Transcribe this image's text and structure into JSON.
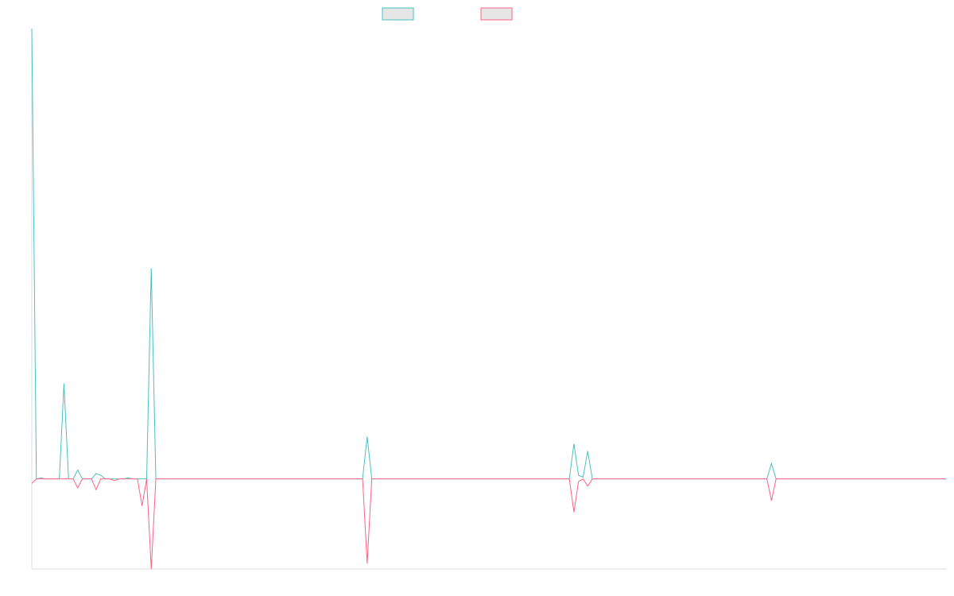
{
  "chart_data": {
    "type": "line",
    "title": "",
    "xlabel": "",
    "ylabel": "",
    "grid": false,
    "legend_position": "top-center",
    "x_count": 200,
    "ylim": [
      -100,
      500
    ],
    "series": [
      {
        "color": "#4bc0c0",
        "legend_fill": "#e6e6e6",
        "points": [
          [
            0,
            500
          ],
          [
            1,
            0
          ],
          [
            2,
            1
          ],
          [
            3,
            0
          ],
          [
            6,
            0
          ],
          [
            7,
            106
          ],
          [
            8,
            0
          ],
          [
            9,
            0
          ],
          [
            10,
            10
          ],
          [
            11,
            0
          ],
          [
            13,
            0
          ],
          [
            14,
            6
          ],
          [
            15,
            4
          ],
          [
            16,
            0
          ],
          [
            20,
            0
          ],
          [
            21,
            1
          ],
          [
            22,
            0
          ],
          [
            25,
            0
          ],
          [
            26,
            234
          ],
          [
            27,
            0
          ],
          [
            72,
            0
          ],
          [
            73,
            47
          ],
          [
            74,
            0
          ],
          [
            117,
            0
          ],
          [
            118,
            39
          ],
          [
            119,
            4
          ],
          [
            120,
            2
          ],
          [
            121,
            31
          ],
          [
            122,
            0
          ],
          [
            160,
            0
          ],
          [
            161,
            17
          ],
          [
            162,
            0
          ],
          [
            199,
            0
          ]
        ]
      },
      {
        "color": "#ff6384",
        "legend_fill": "#e6e6e6",
        "points": [
          [
            0,
            -5
          ],
          [
            1,
            0
          ],
          [
            9,
            0
          ],
          [
            10,
            -10
          ],
          [
            11,
            0
          ],
          [
            13,
            0
          ],
          [
            14,
            -12
          ],
          [
            15,
            0
          ],
          [
            17,
            0
          ],
          [
            18,
            -2
          ],
          [
            19,
            0
          ],
          [
            23,
            0
          ],
          [
            24,
            -30
          ],
          [
            25,
            0
          ],
          [
            26,
            -100
          ],
          [
            27,
            0
          ],
          [
            72,
            0
          ],
          [
            73,
            -94
          ],
          [
            74,
            0
          ],
          [
            117,
            0
          ],
          [
            118,
            -37
          ],
          [
            119,
            -3
          ],
          [
            120,
            0
          ],
          [
            121,
            -8
          ],
          [
            122,
            0
          ],
          [
            160,
            0
          ],
          [
            161,
            -24
          ],
          [
            162,
            0
          ],
          [
            199,
            0
          ]
        ]
      }
    ]
  }
}
